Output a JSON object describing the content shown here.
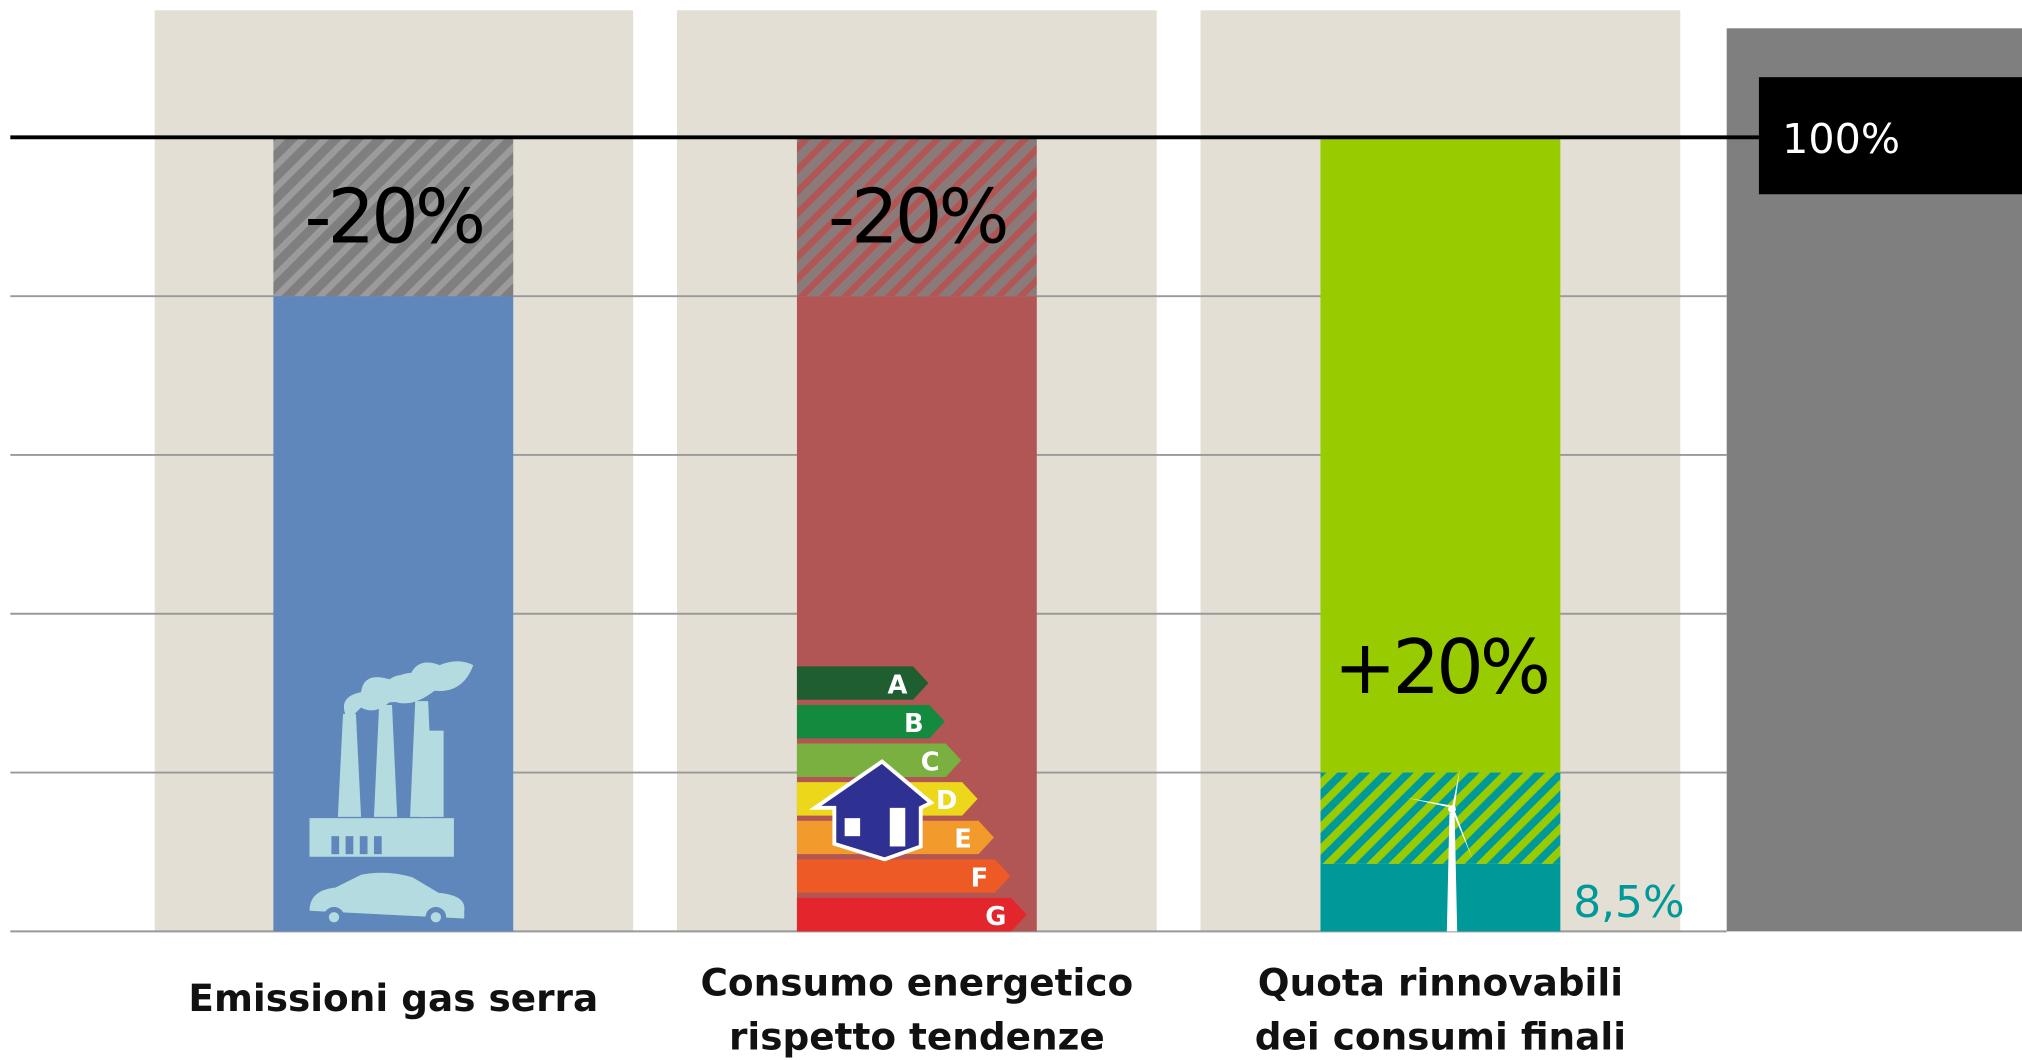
{
  "chart_data": {
    "type": "bar",
    "ylim": [
      0,
      117.3
    ],
    "grid_lines": [
      20,
      40,
      60,
      80
    ],
    "reference": {
      "value": 100,
      "label": "100%"
    },
    "energy_classes": [
      "A",
      "B",
      "C",
      "D",
      "E",
      "F",
      "G"
    ],
    "bars": [
      {
        "category": [
          "Emissioni gas serra"
        ],
        "color": "#5f87bb",
        "value": 100,
        "change": -20,
        "change_label": "-20%"
      },
      {
        "category": [
          "Consumo energetico",
          "rispetto tendenze"
        ],
        "color": "#b15654",
        "value": 100,
        "change": -20,
        "change_label": "-20%"
      },
      {
        "category": [
          "Quota rinnovabili",
          "dei consumi finali"
        ],
        "color": "#99cc00",
        "value": 100,
        "current": 8.5,
        "current_label": "8,5%",
        "current_color": "#009999",
        "target": 20,
        "target_label": "+20%"
      }
    ]
  }
}
